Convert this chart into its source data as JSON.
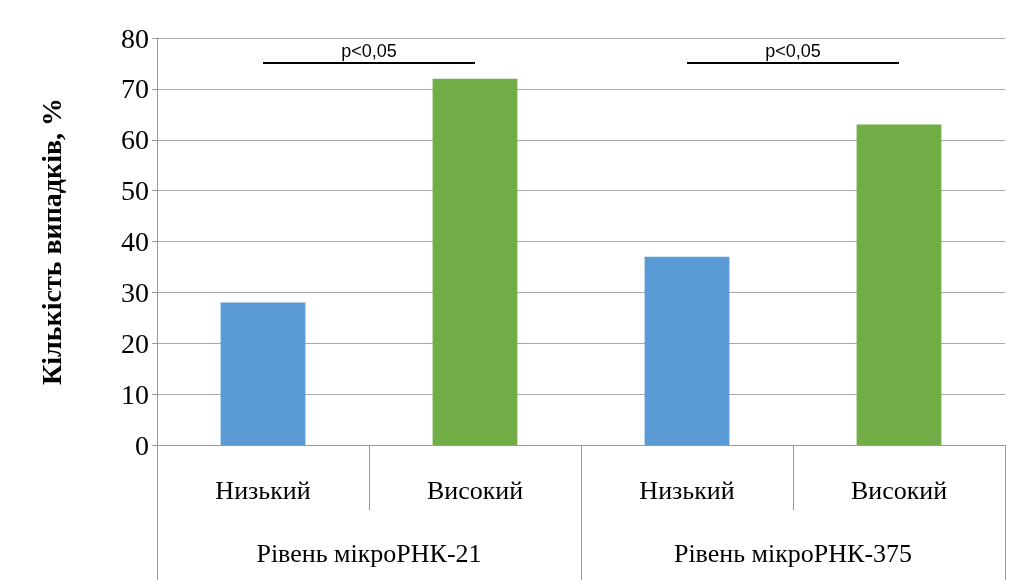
{
  "chart_data": {
    "type": "bar",
    "ylabel": "Кількість випадків, %",
    "categories": [
      "Низький",
      "Високий",
      "Низький",
      "Високий"
    ],
    "values": [
      28,
      72,
      37,
      63
    ],
    "colors": [
      "#5b9bd5",
      "#70ad47",
      "#5b9bd5",
      "#70ad47"
    ],
    "ylim": [
      0,
      80
    ],
    "yticks": [
      0,
      10,
      20,
      30,
      40,
      50,
      60,
      70,
      80
    ],
    "grid": "y",
    "annotations": [
      "p<0,05",
      "p<0,05",
      "Рівень мікроРНК-21",
      "Рівень мікроРНК-375"
    ]
  }
}
